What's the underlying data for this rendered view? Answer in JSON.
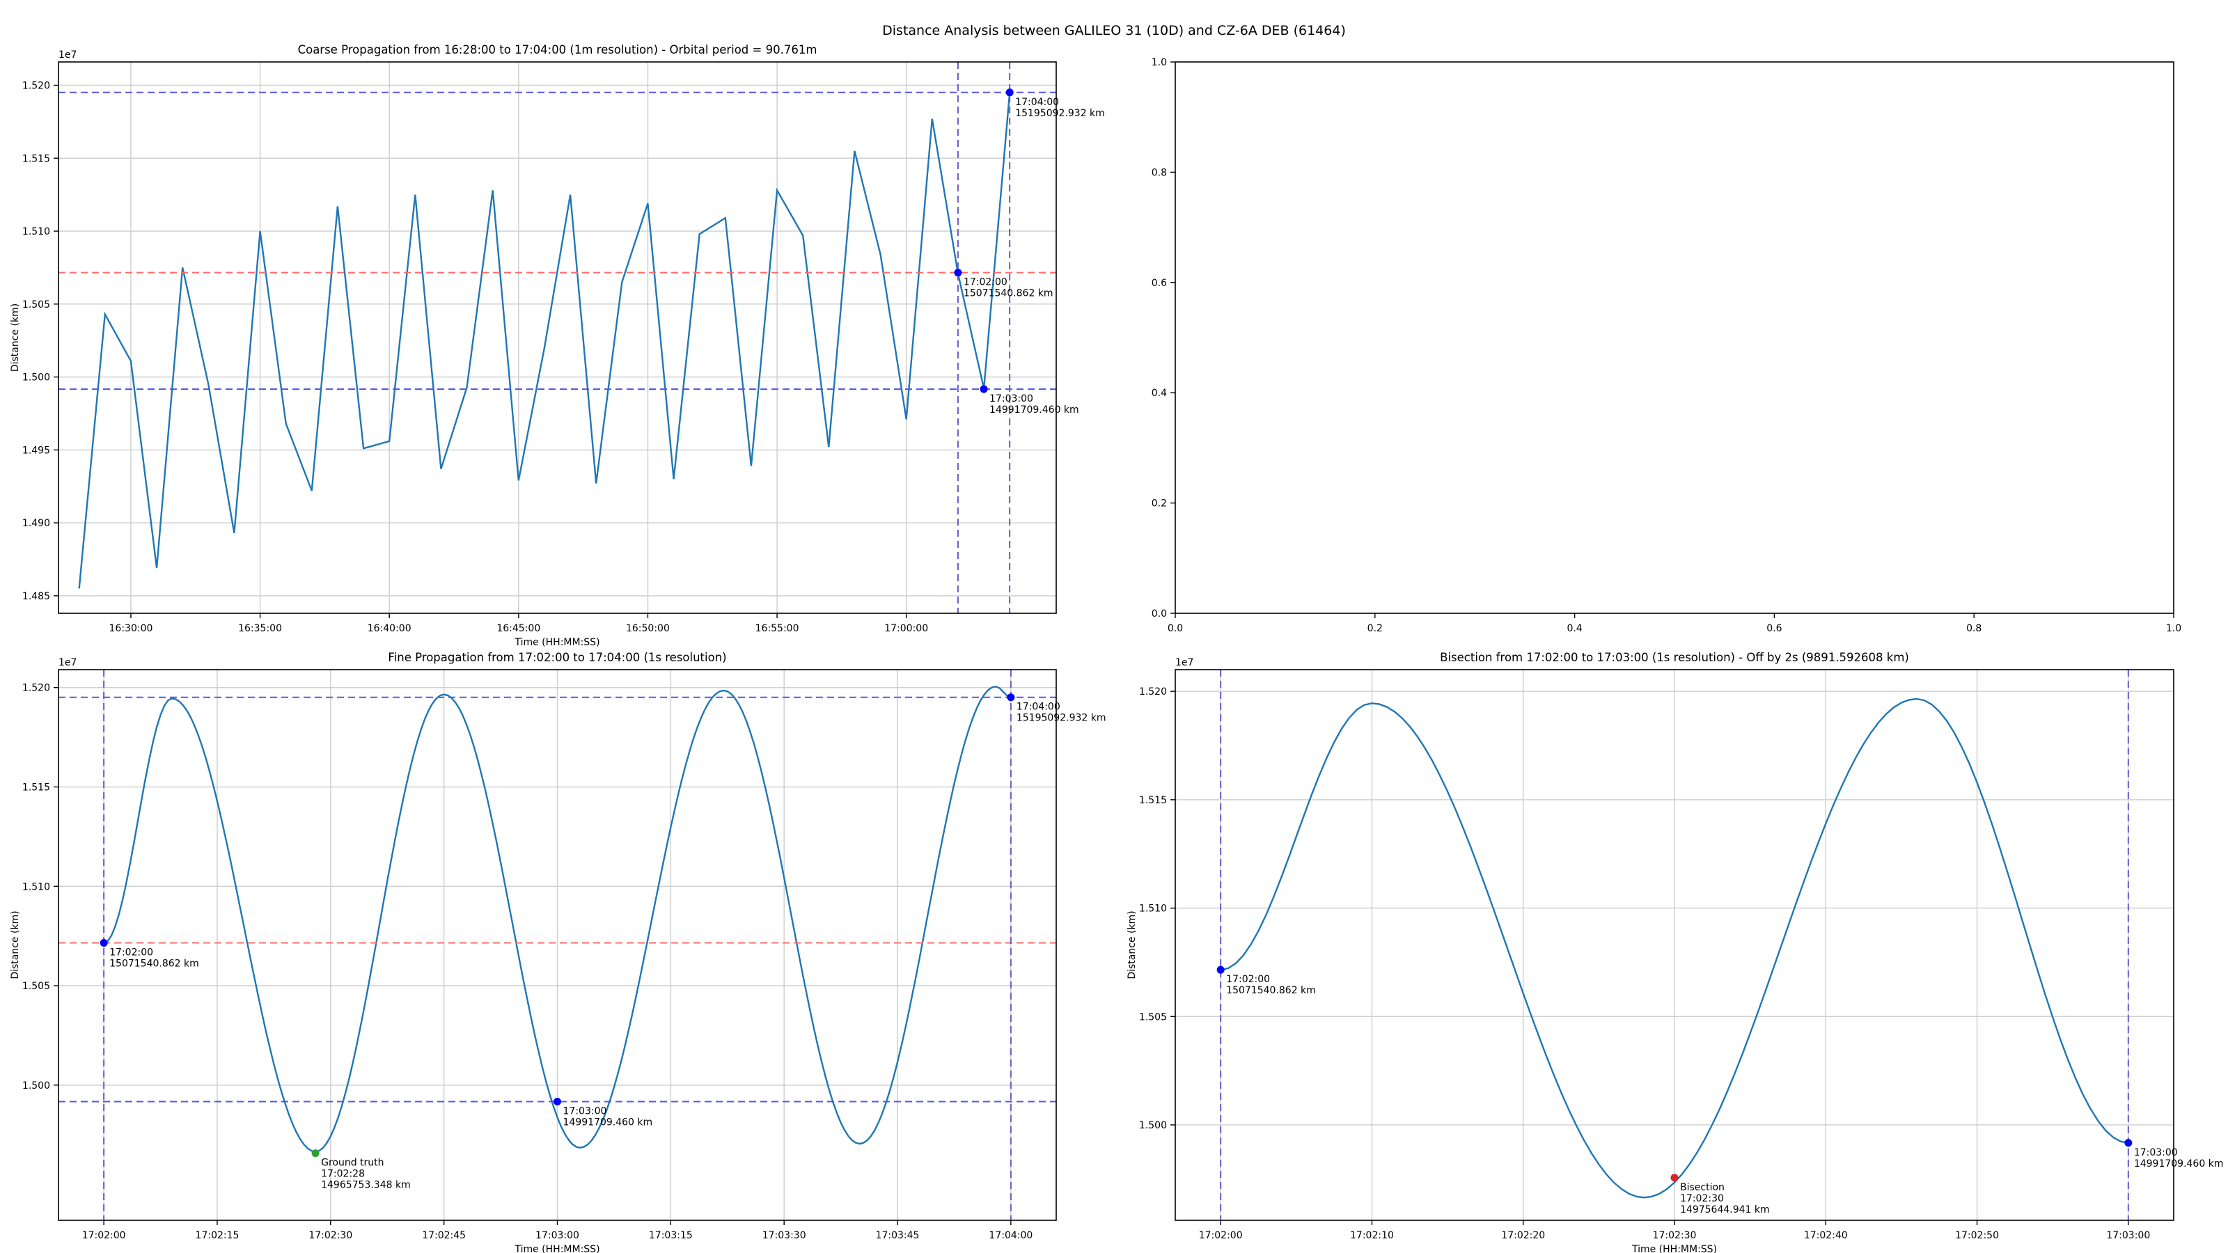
{
  "figure": {
    "suptitle": "Distance Analysis between GALILEO 31 (10D) and CZ-6A DEB (61464)"
  },
  "colors": {
    "line": "#1f77b4",
    "marker": "#0000ff",
    "vline": "#6a5acd",
    "hline_blue": "#5555ee",
    "hline_red": "#ff6b6b",
    "ground_truth": "#2ca02c",
    "bisection": "#d62728",
    "grid": "#d0d0d0"
  },
  "chart_data": [
    {
      "id": "coarse",
      "type": "line",
      "title": "Coarse Propagation from 16:28:00 to 17:04:00 (1m resolution) - Orbital period = 90.761m",
      "xlabel": "Time (HH:MM:SS)",
      "ylabel": "Distance (km)",
      "y_scale_label": "1e7",
      "xlim": [
        -0.8,
        37.8
      ],
      "ylim": [
        1.4838,
        1.5216
      ],
      "xticks": [
        2,
        7,
        12,
        17,
        22,
        27,
        32
      ],
      "xtick_labels": [
        "16:30:00",
        "16:35:00",
        "16:40:00",
        "16:45:00",
        "16:50:00",
        "16:55:00",
        "17:00:00"
      ],
      "yticks": [
        1.485,
        1.49,
        1.495,
        1.5,
        1.505,
        1.51,
        1.515,
        1.52
      ],
      "ytick_labels": [
        "1.485",
        "1.490",
        "1.495",
        "1.500",
        "1.505",
        "1.510",
        "1.515",
        "1.520"
      ],
      "grid": true,
      "x": [
        0,
        1,
        2,
        3,
        4,
        5,
        6,
        7,
        8,
        9,
        10,
        11,
        12,
        13,
        14,
        15,
        16,
        17,
        18,
        19,
        20,
        21,
        22,
        23,
        24,
        25,
        26,
        27,
        28,
        29,
        30,
        31,
        32,
        33,
        34,
        35,
        36
      ],
      "y": [
        1.4855,
        1.5043,
        1.5011,
        1.4869,
        1.5075,
        1.4995,
        1.4893,
        1.51,
        1.4968,
        1.4922,
        1.5117,
        1.4951,
        1.4956,
        1.5125,
        1.4937,
        1.4993,
        1.5128,
        1.4929,
        1.502,
        1.5125,
        1.4927,
        1.5065,
        1.5119,
        1.493,
        1.5098,
        1.5109,
        1.4939,
        1.5128,
        1.5097,
        1.4952,
        1.5155,
        1.5084,
        1.4971,
        1.5177,
        1.5071,
        1.4992,
        1.5195
      ],
      "vlines": [
        34,
        36
      ],
      "hlines": [
        {
          "y": 1.5195093,
          "color": "blue"
        },
        {
          "y": 1.5071541,
          "color": "red"
        },
        {
          "y": 1.4991709,
          "color": "blue"
        }
      ],
      "points": [
        {
          "x": 34,
          "y": 1.5071541,
          "lines": [
            "17:02:00",
            "15071540.862 km"
          ]
        },
        {
          "x": 35,
          "y": 1.4991709,
          "lines": [
            "17:03:00",
            "14991709.460 km"
          ]
        },
        {
          "x": 36,
          "y": 1.5195093,
          "lines": [
            "17:04:00",
            "15195092.932 km"
          ]
        }
      ]
    },
    {
      "id": "empty",
      "type": "line",
      "title": "",
      "xlim": [
        0,
        1
      ],
      "ylim": [
        0,
        1
      ],
      "xticks": [
        0,
        0.2,
        0.4,
        0.6,
        0.8,
        1.0
      ],
      "xtick_labels": [
        "0.0",
        "0.2",
        "0.4",
        "0.6",
        "0.8",
        "1.0"
      ],
      "yticks": [
        0,
        0.2,
        0.4,
        0.6,
        0.8,
        1.0
      ],
      "ytick_labels": [
        "0.0",
        "0.2",
        "0.4",
        "0.6",
        "0.8",
        "1.0"
      ],
      "grid": false
    },
    {
      "id": "fine",
      "type": "line",
      "title": "Fine Propagation from 17:02:00 to 17:04:00 (1s resolution)",
      "xlabel": "Time (HH:MM:SS)",
      "ylabel": "Distance (km)",
      "y_scale_label": "1e7",
      "xlim": [
        -6,
        126
      ],
      "ylim": [
        1.4932,
        1.5209
      ],
      "xticks": [
        0,
        15,
        30,
        45,
        60,
        75,
        90,
        105,
        120
      ],
      "xtick_labels": [
        "17:02:00",
        "17:02:15",
        "17:02:30",
        "17:02:45",
        "17:03:00",
        "17:03:15",
        "17:03:30",
        "17:03:45",
        "17:04:00"
      ],
      "yticks": [
        1.5,
        1.505,
        1.51,
        1.515,
        1.52
      ],
      "ytick_labels": [
        "1.500",
        "1.505",
        "1.510",
        "1.515",
        "1.520"
      ],
      "grid": true,
      "curve_keypoints": [
        [
          0,
          1.50715
        ],
        [
          9,
          1.51945
        ],
        [
          28,
          1.49665
        ],
        [
          45,
          1.51965
        ],
        [
          63,
          1.49685
        ],
        [
          82,
          1.51985
        ],
        [
          100,
          1.49705
        ],
        [
          118,
          1.52005
        ],
        [
          120,
          1.51951
        ]
      ],
      "vlines": [
        0,
        120
      ],
      "hlines": [
        {
          "y": 1.5195093,
          "color": "blue"
        },
        {
          "y": 1.5071541,
          "color": "red"
        },
        {
          "y": 1.4991709,
          "color": "blue"
        }
      ],
      "points": [
        {
          "x": 0,
          "y": 1.5071541,
          "lines": [
            "17:02:00",
            "15071540.862 km"
          ]
        },
        {
          "x": 60,
          "y": 1.4991709,
          "lines": [
            "17:03:00",
            "14991709.460 km"
          ]
        },
        {
          "x": 120,
          "y": 1.5195093,
          "lines": [
            "17:04:00",
            "15195092.932 km"
          ]
        }
      ],
      "ground_truth": {
        "x": 28,
        "y": 1.4965753,
        "lines": [
          "Ground truth",
          "17:02:28",
          "14965753.348 km"
        ]
      }
    },
    {
      "id": "bisection",
      "type": "line",
      "title": "Bisection from 17:02:00 to 17:03:00 (1s resolution) - Off by 2s (9891.592608 km)",
      "xlabel": "Time (HH:MM:SS)",
      "ylabel": "Distance (km)",
      "y_scale_label": "1e7",
      "xlim": [
        -3,
        63
      ],
      "ylim": [
        1.4956,
        1.521
      ],
      "xticks": [
        0,
        10,
        20,
        30,
        40,
        50,
        60
      ],
      "xtick_labels": [
        "17:02:00",
        "17:02:10",
        "17:02:20",
        "17:02:30",
        "17:02:40",
        "17:02:50",
        "17:03:00"
      ],
      "yticks": [
        1.5,
        1.505,
        1.51,
        1.515,
        1.52
      ],
      "ytick_labels": [
        "1.500",
        "1.505",
        "1.510",
        "1.515",
        "1.520"
      ],
      "grid": true,
      "curve_keypoints": [
        [
          0,
          1.50715
        ],
        [
          10,
          1.51945
        ],
        [
          28,
          1.49665
        ],
        [
          46,
          1.51965
        ],
        [
          60,
          1.49917
        ]
      ],
      "vlines": [
        0,
        60
      ],
      "hlines": [],
      "points": [
        {
          "x": 0,
          "y": 1.5071541,
          "lines": [
            "17:02:00",
            "15071540.862 km"
          ]
        },
        {
          "x": 60,
          "y": 1.4991709,
          "lines": [
            "17:03:00",
            "14991709.460 km"
          ]
        }
      ],
      "bisection_point": {
        "x": 30,
        "y": 1.4975645,
        "lines": [
          "Bisection",
          "17:02:30",
          "14975644.941 km"
        ]
      }
    }
  ]
}
